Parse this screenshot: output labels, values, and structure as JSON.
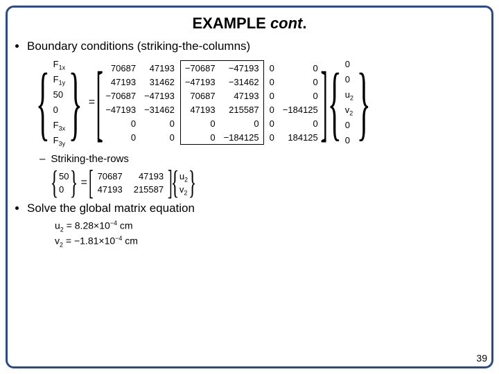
{
  "title_main": "EXAMPLE ",
  "title_it": "cont",
  "title_dot": ".",
  "bullet1": "Boundary conditions (striking-the-columns)",
  "sub1": "Striking-the-rows",
  "bullet2": "Solve the global matrix equation",
  "page_number": "39",
  "big_eq": {
    "lhs": [
      "F₁ₓ",
      "F₁ᵧ",
      "50",
      "0",
      "F₃ₓ",
      "F₃ᵧ"
    ],
    "lhs_raw": [
      {
        "t": "F",
        "s": "1x"
      },
      {
        "t": "F",
        "s": "1y"
      },
      {
        "t": "50",
        "s": ""
      },
      {
        "t": "0",
        "s": ""
      },
      {
        "t": "F",
        "s": "3x"
      },
      {
        "t": "F",
        "s": "3y"
      }
    ],
    "matrix_left": [
      [
        "70687",
        "47193"
      ],
      [
        "47193",
        "31462"
      ],
      [
        "−70687",
        "−47193"
      ],
      [
        "−47193",
        "−31462"
      ],
      [
        "0",
        "0"
      ],
      [
        "0",
        "0"
      ]
    ],
    "matrix_mid": [
      [
        "−70687",
        "−47193"
      ],
      [
        "−47193",
        "−31462"
      ],
      [
        "70687",
        "47193"
      ],
      [
        "47193",
        "215587"
      ],
      [
        "0",
        "0"
      ],
      [
        "0",
        "−184125"
      ]
    ],
    "matrix_right": [
      [
        "0",
        "0"
      ],
      [
        "0",
        "0"
      ],
      [
        "0",
        "0"
      ],
      [
        "0",
        "−184125"
      ],
      [
        "0",
        "0"
      ],
      [
        "0",
        "184125"
      ]
    ],
    "rhs": [
      {
        "t": "0",
        "s": ""
      },
      {
        "t": "0",
        "s": ""
      },
      {
        "t": "u",
        "s": "2"
      },
      {
        "t": "v",
        "s": "2"
      },
      {
        "t": "0",
        "s": ""
      },
      {
        "t": "0",
        "s": ""
      }
    ]
  },
  "small_eq": {
    "lhs": [
      "50",
      "0"
    ],
    "matrix": [
      [
        "70687",
        "47193"
      ],
      [
        "47193",
        "215587"
      ]
    ],
    "rhs": [
      {
        "t": "u",
        "s": "2"
      },
      {
        "t": "v",
        "s": "2"
      }
    ]
  },
  "results": {
    "u2_prefix": "u",
    "u2_sub": "2",
    "u2_eq": " = 8.28×10",
    "u2_exp": "−4",
    "u2_unit": " cm",
    "v2_prefix": "v",
    "v2_sub": "2",
    "v2_eq": " = −1.81×10",
    "v2_exp": "−4",
    "v2_unit": " cm"
  },
  "colors": {
    "border": "#2b4a8b",
    "text": "#000000",
    "bg": "#ffffff"
  }
}
